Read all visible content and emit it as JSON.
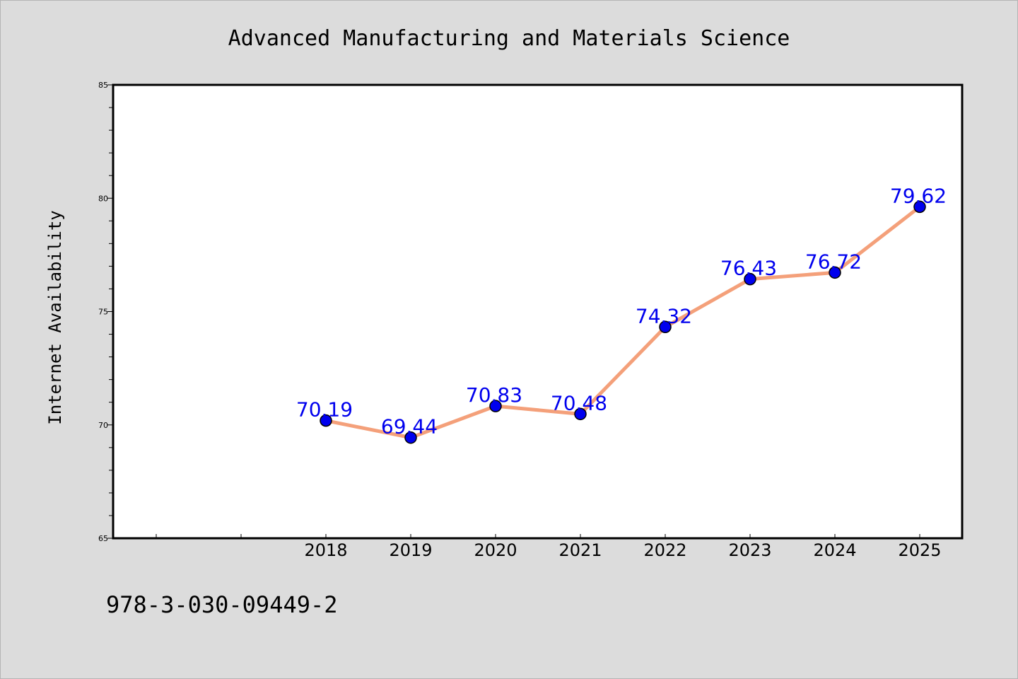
{
  "chart_data": {
    "type": "line",
    "title": "Advanced Manufacturing and Materials Science",
    "xlabel": "",
    "ylabel": "Internet Availability",
    "x": [
      "2018",
      "2019",
      "2020",
      "2021",
      "2022",
      "2023",
      "2024",
      "2025"
    ],
    "x_tick_labels": [
      "2018",
      "2019",
      "2020",
      "2021",
      "2022",
      "2023",
      "2024",
      "2025"
    ],
    "series": [
      {
        "values": [
          70.19,
          69.44,
          70.83,
          70.48,
          74.32,
          76.43,
          76.72,
          79.62
        ],
        "data_labels": [
          "70.19",
          "69.44",
          "70.83",
          "70.48",
          "74.32",
          "76.43",
          "76.72",
          "79.62"
        ],
        "line_color": "#f4a07a",
        "marker_color": "#0000ee"
      }
    ],
    "ylim": [
      65,
      85
    ],
    "y_ticks": [
      65,
      70,
      75,
      80,
      85
    ],
    "y_tick_labels": [
      "65",
      "70",
      "75",
      "80",
      "85"
    ],
    "grid": false,
    "legend": "none"
  },
  "footer": {
    "isbn": "978-3-030-09449-2"
  },
  "colors": {
    "background": "#dcdcdc",
    "plot_background": "#ffffff",
    "axis": "#000000",
    "label_text": "#0000ee"
  }
}
